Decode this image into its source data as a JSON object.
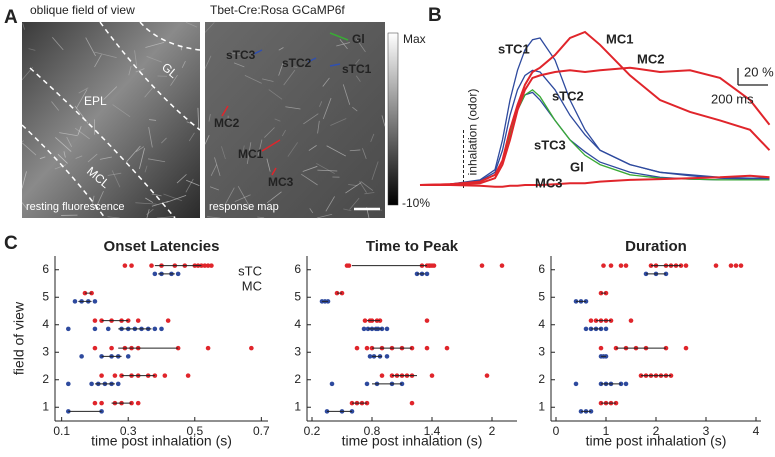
{
  "panel_labels": [
    "A",
    "B",
    "C"
  ],
  "image_panel": {
    "left_title": "oblique field of view",
    "left_caption": "resting fluorescence",
    "layers": [
      "GL",
      "EPL",
      "MCL"
    ],
    "right_title": "Tbet-Cre:Rosa GCaMP6f",
    "right_caption": "response map",
    "rois": [
      {
        "text": "Gl",
        "color": "#3aaa35"
      },
      {
        "text": "sTC3",
        "color": "#3050b0"
      },
      {
        "text": "sTC2",
        "color": "#3050b0"
      },
      {
        "text": "sTC1",
        "color": "#3050b0"
      },
      {
        "text": "MC2",
        "color": "#e0252b"
      },
      {
        "text": "MC1",
        "color": "#e0252b"
      },
      {
        "text": "MC3",
        "color": "#e0252b"
      }
    ],
    "colorbar": [
      "Max",
      "-10%"
    ]
  },
  "chart_data": [
    {
      "type": "line",
      "x": [
        0,
        200,
        400,
        500,
        550,
        600,
        650,
        700,
        750,
        800,
        900,
        1000,
        1100,
        1200,
        1400,
        1600,
        1800,
        2000,
        2200,
        2330
      ],
      "series": [
        {
          "name": "sTC1",
          "color": "#2e4a9e",
          "values": [
            0,
            1,
            6,
            18,
            53,
            100,
            135,
            159,
            171,
            173,
            147,
            100,
            65,
            41,
            24,
            15,
            12,
            9,
            8,
            8
          ]
        },
        {
          "name": "sTC2",
          "color": "#2e4a9e",
          "values": [
            0,
            1,
            5,
            15,
            41,
            82,
            112,
            129,
            135,
            133,
            112,
            82,
            59,
            41,
            24,
            15,
            11,
            8,
            7,
            7
          ]
        },
        {
          "name": "sTC3",
          "color": "#2e4a9e",
          "values": [
            0,
            1,
            4,
            12,
            29,
            65,
            88,
            106,
            109,
            100,
            76,
            53,
            39,
            27,
            15,
            9,
            7,
            6,
            6,
            6
          ]
        },
        {
          "name": "Gl",
          "color": "#3aaa35",
          "values": [
            0,
            0,
            2,
            8,
            24,
            59,
            88,
            106,
            112,
            104,
            76,
            53,
            35,
            24,
            12,
            8,
            7,
            6,
            6,
            6
          ]
        },
        {
          "name": "MC1",
          "color": "#e0252b",
          "values": [
            0,
            1,
            4,
            12,
            29,
            65,
            94,
            118,
            133,
            138,
            153,
            173,
            180,
            165,
            129,
            100,
            86,
            76,
            65,
            41
          ]
        },
        {
          "name": "MC2",
          "color": "#e0252b",
          "values": [
            0,
            1,
            2,
            8,
            24,
            53,
            88,
            112,
            126,
            129,
            133,
            135,
            133,
            135,
            138,
            133,
            135,
            126,
            100,
            71
          ]
        },
        {
          "name": "MC3",
          "color": "#e0252b",
          "values": [
            0,
            0,
            -1,
            -2,
            -2,
            -1,
            -1,
            0,
            0,
            0,
            1,
            2,
            2,
            4,
            6,
            7,
            8,
            9,
            11,
            9
          ]
        }
      ],
      "annotation": {
        "text": "inhalation (odor)",
        "x": 250
      },
      "scalebar": {
        "y": 20,
        "y_label": "20 %",
        "x": 200,
        "x_label": "200 ms"
      }
    },
    {
      "type": "scatter",
      "title": "Onset Latencies",
      "xlabel": "time post inhalation (s)",
      "ylabel": "field of view",
      "legend": "top-right",
      "xlim": [
        0.08,
        0.72
      ],
      "xticks": [
        0.1,
        0.3,
        0.5,
        0.7
      ],
      "ylim": [
        0.5,
        6.5
      ],
      "yticks": [
        1,
        2,
        3,
        4,
        5,
        6
      ],
      "series": [
        {
          "name": "sTC",
          "color": "#2e4a9e",
          "x": [
            0.38,
            0.4,
            0.43,
            0.45,
            0.14,
            0.16,
            0.18,
            0.2,
            0.12,
            0.2,
            0.24,
            0.28,
            0.3,
            0.32,
            0.34,
            0.36,
            0.38,
            0.4,
            0.16,
            0.22,
            0.25,
            0.27,
            0.3,
            0.12,
            0.19,
            0.21,
            0.23,
            0.25,
            0.27,
            0.12,
            0.22
          ],
          "y": [
            5.85,
            5.85,
            5.85,
            5.85,
            4.85,
            4.85,
            4.85,
            4.85,
            3.85,
            3.85,
            3.85,
            3.85,
            3.85,
            3.85,
            3.85,
            3.85,
            3.85,
            3.85,
            2.85,
            2.85,
            2.85,
            2.85,
            2.85,
            1.85,
            1.85,
            1.85,
            1.85,
            1.85,
            1.85,
            0.85,
            0.85
          ]
        },
        {
          "name": "MC",
          "color": "#e0252b",
          "x": [
            0.29,
            0.31,
            0.37,
            0.4,
            0.44,
            0.47,
            0.5,
            0.51,
            0.52,
            0.53,
            0.54,
            0.55,
            0.17,
            0.19,
            0.2,
            0.22,
            0.25,
            0.28,
            0.3,
            0.33,
            0.42,
            0.2,
            0.25,
            0.29,
            0.31,
            0.33,
            0.45,
            0.54,
            0.67,
            0.22,
            0.26,
            0.28,
            0.31,
            0.33,
            0.36,
            0.38,
            0.41,
            0.48,
            0.2,
            0.22,
            0.26,
            0.28,
            0.31,
            0.33
          ],
          "y": [
            6.15,
            6.15,
            6.15,
            6.15,
            6.15,
            6.15,
            6.15,
            6.15,
            6.15,
            6.15,
            6.15,
            6.15,
            5.15,
            5.15,
            4.15,
            4.15,
            4.15,
            4.15,
            4.15,
            4.15,
            4.15,
            3.15,
            3.15,
            3.15,
            3.15,
            3.15,
            3.15,
            3.15,
            3.15,
            2.15,
            2.15,
            2.15,
            2.15,
            2.15,
            2.15,
            2.15,
            2.15,
            2.15,
            1.15,
            1.15,
            1.15,
            1.15,
            1.15,
            1.15
          ]
        }
      ],
      "lines": [
        {
          "y": 6.15,
          "x": [
            0.38,
            0.52
          ]
        },
        {
          "y": 5.85,
          "x": [
            0.39,
            0.44
          ]
        },
        {
          "y": 5.15,
          "x": [
            0.17,
            0.19
          ]
        },
        {
          "y": 4.85,
          "x": [
            0.15,
            0.19
          ]
        },
        {
          "y": 4.15,
          "x": [
            0.22,
            0.3
          ]
        },
        {
          "y": 3.85,
          "x": [
            0.27,
            0.37
          ]
        },
        {
          "y": 3.15,
          "x": [
            0.27,
            0.45
          ]
        },
        {
          "y": 2.85,
          "x": [
            0.22,
            0.28
          ]
        },
        {
          "y": 2.15,
          "x": [
            0.28,
            0.38
          ]
        },
        {
          "y": 1.85,
          "x": [
            0.2,
            0.26
          ]
        },
        {
          "y": 1.15,
          "x": [
            0.25,
            0.31
          ]
        },
        {
          "y": 0.85,
          "x": [
            0.12,
            0.22
          ]
        }
      ]
    },
    {
      "type": "scatter",
      "title": "Time to Peak",
      "xlabel": "time post inhalation (s)",
      "xlim": [
        0.15,
        2.25
      ],
      "xticks": [
        0.2,
        0.8,
        1.4,
        2
      ],
      "ylim": [
        0.5,
        6.5
      ],
      "yticks": [
        1,
        2,
        3,
        4,
        5,
        6
      ],
      "series": [
        {
          "color": "#2e4a9e",
          "x": [
            1.25,
            1.3,
            1.35,
            0.3,
            0.33,
            0.36,
            0.72,
            0.76,
            0.8,
            0.84,
            0.86,
            0.9,
            0.95,
            0.78,
            0.82,
            0.88,
            0.95,
            0.4,
            0.75,
            0.85,
            1.0,
            1.1,
            0.35,
            0.5,
            0.6
          ],
          "y": [
            5.85,
            5.85,
            5.85,
            4.85,
            4.85,
            4.85,
            3.85,
            3.85,
            3.85,
            3.85,
            3.85,
            3.85,
            3.85,
            2.85,
            2.85,
            2.85,
            2.85,
            1.85,
            1.85,
            1.85,
            1.85,
            1.85,
            0.85,
            0.85,
            0.85
          ]
        },
        {
          "color": "#e0252b",
          "x": [
            0.55,
            0.57,
            1.3,
            1.35,
            1.37,
            1.38,
            1.4,
            1.42,
            1.9,
            2.1,
            0.45,
            0.5,
            0.73,
            0.78,
            0.8,
            0.85,
            0.88,
            1.35,
            0.65,
            0.75,
            0.8,
            0.9,
            1.0,
            1.1,
            1.2,
            1.35,
            1.55,
            0.9,
            1.0,
            1.05,
            1.1,
            1.15,
            1.2,
            1.4,
            1.95,
            0.6,
            0.65,
            0.7,
            0.75,
            1.2
          ],
          "y": [
            6.15,
            6.15,
            6.15,
            6.15,
            6.15,
            6.15,
            6.15,
            6.15,
            6.15,
            6.15,
            5.15,
            5.15,
            4.15,
            4.15,
            4.15,
            4.15,
            4.15,
            4.15,
            3.15,
            3.15,
            3.15,
            3.15,
            3.15,
            3.15,
            3.15,
            3.15,
            3.15,
            2.15,
            2.15,
            2.15,
            2.15,
            2.15,
            2.15,
            2.15,
            2.15,
            1.15,
            1.15,
            1.15,
            1.15,
            1.15
          ]
        }
      ],
      "lines": [
        {
          "y": 6.15,
          "x": [
            0.6,
            1.35
          ]
        },
        {
          "y": 5.85,
          "x": [
            1.25,
            1.33
          ]
        },
        {
          "y": 5.15,
          "x": [
            0.45,
            0.5
          ]
        },
        {
          "y": 4.85,
          "x": [
            0.3,
            0.36
          ]
        },
        {
          "y": 4.15,
          "x": [
            0.75,
            0.88
          ]
        },
        {
          "y": 3.85,
          "x": [
            0.76,
            0.9
          ]
        },
        {
          "y": 3.15,
          "x": [
            0.8,
            1.2
          ]
        },
        {
          "y": 2.85,
          "x": [
            0.8,
            0.9
          ]
        },
        {
          "y": 2.15,
          "x": [
            1.0,
            1.25
          ]
        },
        {
          "y": 1.85,
          "x": [
            0.8,
            1.1
          ]
        },
        {
          "y": 1.15,
          "x": [
            0.6,
            0.75
          ]
        },
        {
          "y": 0.85,
          "x": [
            0.35,
            0.6
          ]
        }
      ]
    },
    {
      "type": "scatter",
      "title": "Duration",
      "xlabel": "time post inhalation (s)",
      "xlim": [
        -0.1,
        4.1
      ],
      "xticks": [
        0,
        1,
        2,
        3,
        4
      ],
      "ylim": [
        0.5,
        6.5
      ],
      "yticks": [
        1,
        2,
        3,
        4,
        5,
        6
      ],
      "series": [
        {
          "color": "#2e4a9e",
          "x": [
            1.8,
            2.0,
            2.2,
            0.4,
            0.5,
            0.6,
            0.6,
            0.7,
            0.8,
            0.9,
            1.0,
            0.9,
            0.95,
            1.0,
            0.4,
            0.9,
            1.0,
            1.1,
            1.3,
            1.4,
            0.5,
            0.6,
            0.7
          ],
          "y": [
            5.85,
            5.85,
            5.85,
            4.85,
            4.85,
            4.85,
            3.85,
            3.85,
            3.85,
            3.85,
            3.85,
            2.85,
            2.85,
            2.85,
            1.85,
            1.85,
            1.85,
            1.85,
            1.85,
            1.85,
            0.85,
            0.85,
            0.85
          ]
        },
        {
          "color": "#e0252b",
          "x": [
            0.95,
            1.1,
            1.3,
            1.4,
            1.9,
            2.0,
            2.2,
            2.3,
            2.4,
            2.5,
            2.6,
            3.2,
            3.5,
            3.6,
            3.7,
            0.9,
            1.0,
            0.7,
            0.8,
            0.9,
            1.0,
            1.1,
            1.5,
            0.9,
            1.2,
            1.4,
            1.6,
            1.8,
            2.2,
            2.6,
            1.7,
            1.8,
            1.9,
            2.0,
            2.1,
            2.2,
            2.3,
            0.9,
            1.0,
            1.1,
            1.2
          ],
          "y": [
            6.15,
            6.15,
            6.15,
            6.15,
            6.15,
            6.15,
            6.15,
            6.15,
            6.15,
            6.15,
            6.15,
            6.15,
            6.15,
            6.15,
            6.15,
            5.15,
            5.15,
            4.15,
            4.15,
            4.15,
            4.15,
            4.15,
            4.15,
            3.15,
            3.15,
            3.15,
            3.15,
            3.15,
            3.15,
            3.15,
            2.15,
            2.15,
            2.15,
            2.15,
            2.15,
            2.15,
            2.15,
            1.15,
            1.15,
            1.15,
            1.15
          ]
        }
      ],
      "lines": [
        {
          "y": 6.15,
          "x": [
            1.9,
            2.5
          ]
        },
        {
          "y": 5.85,
          "x": [
            1.8,
            2.2
          ]
        },
        {
          "y": 5.15,
          "x": [
            0.9,
            1.0
          ]
        },
        {
          "y": 4.85,
          "x": [
            0.4,
            0.6
          ]
        },
        {
          "y": 4.15,
          "x": [
            0.8,
            1.1
          ]
        },
        {
          "y": 3.85,
          "x": [
            0.7,
            0.9
          ]
        },
        {
          "y": 3.15,
          "x": [
            1.2,
            2.2
          ]
        },
        {
          "y": 2.85,
          "x": [
            0.9,
            1.0
          ]
        },
        {
          "y": 2.15,
          "x": [
            1.7,
            2.3
          ]
        },
        {
          "y": 1.85,
          "x": [
            0.9,
            1.3
          ]
        },
        {
          "y": 1.15,
          "x": [
            0.9,
            1.2
          ]
        },
        {
          "y": 0.85,
          "x": [
            0.5,
            0.7
          ]
        }
      ]
    }
  ]
}
